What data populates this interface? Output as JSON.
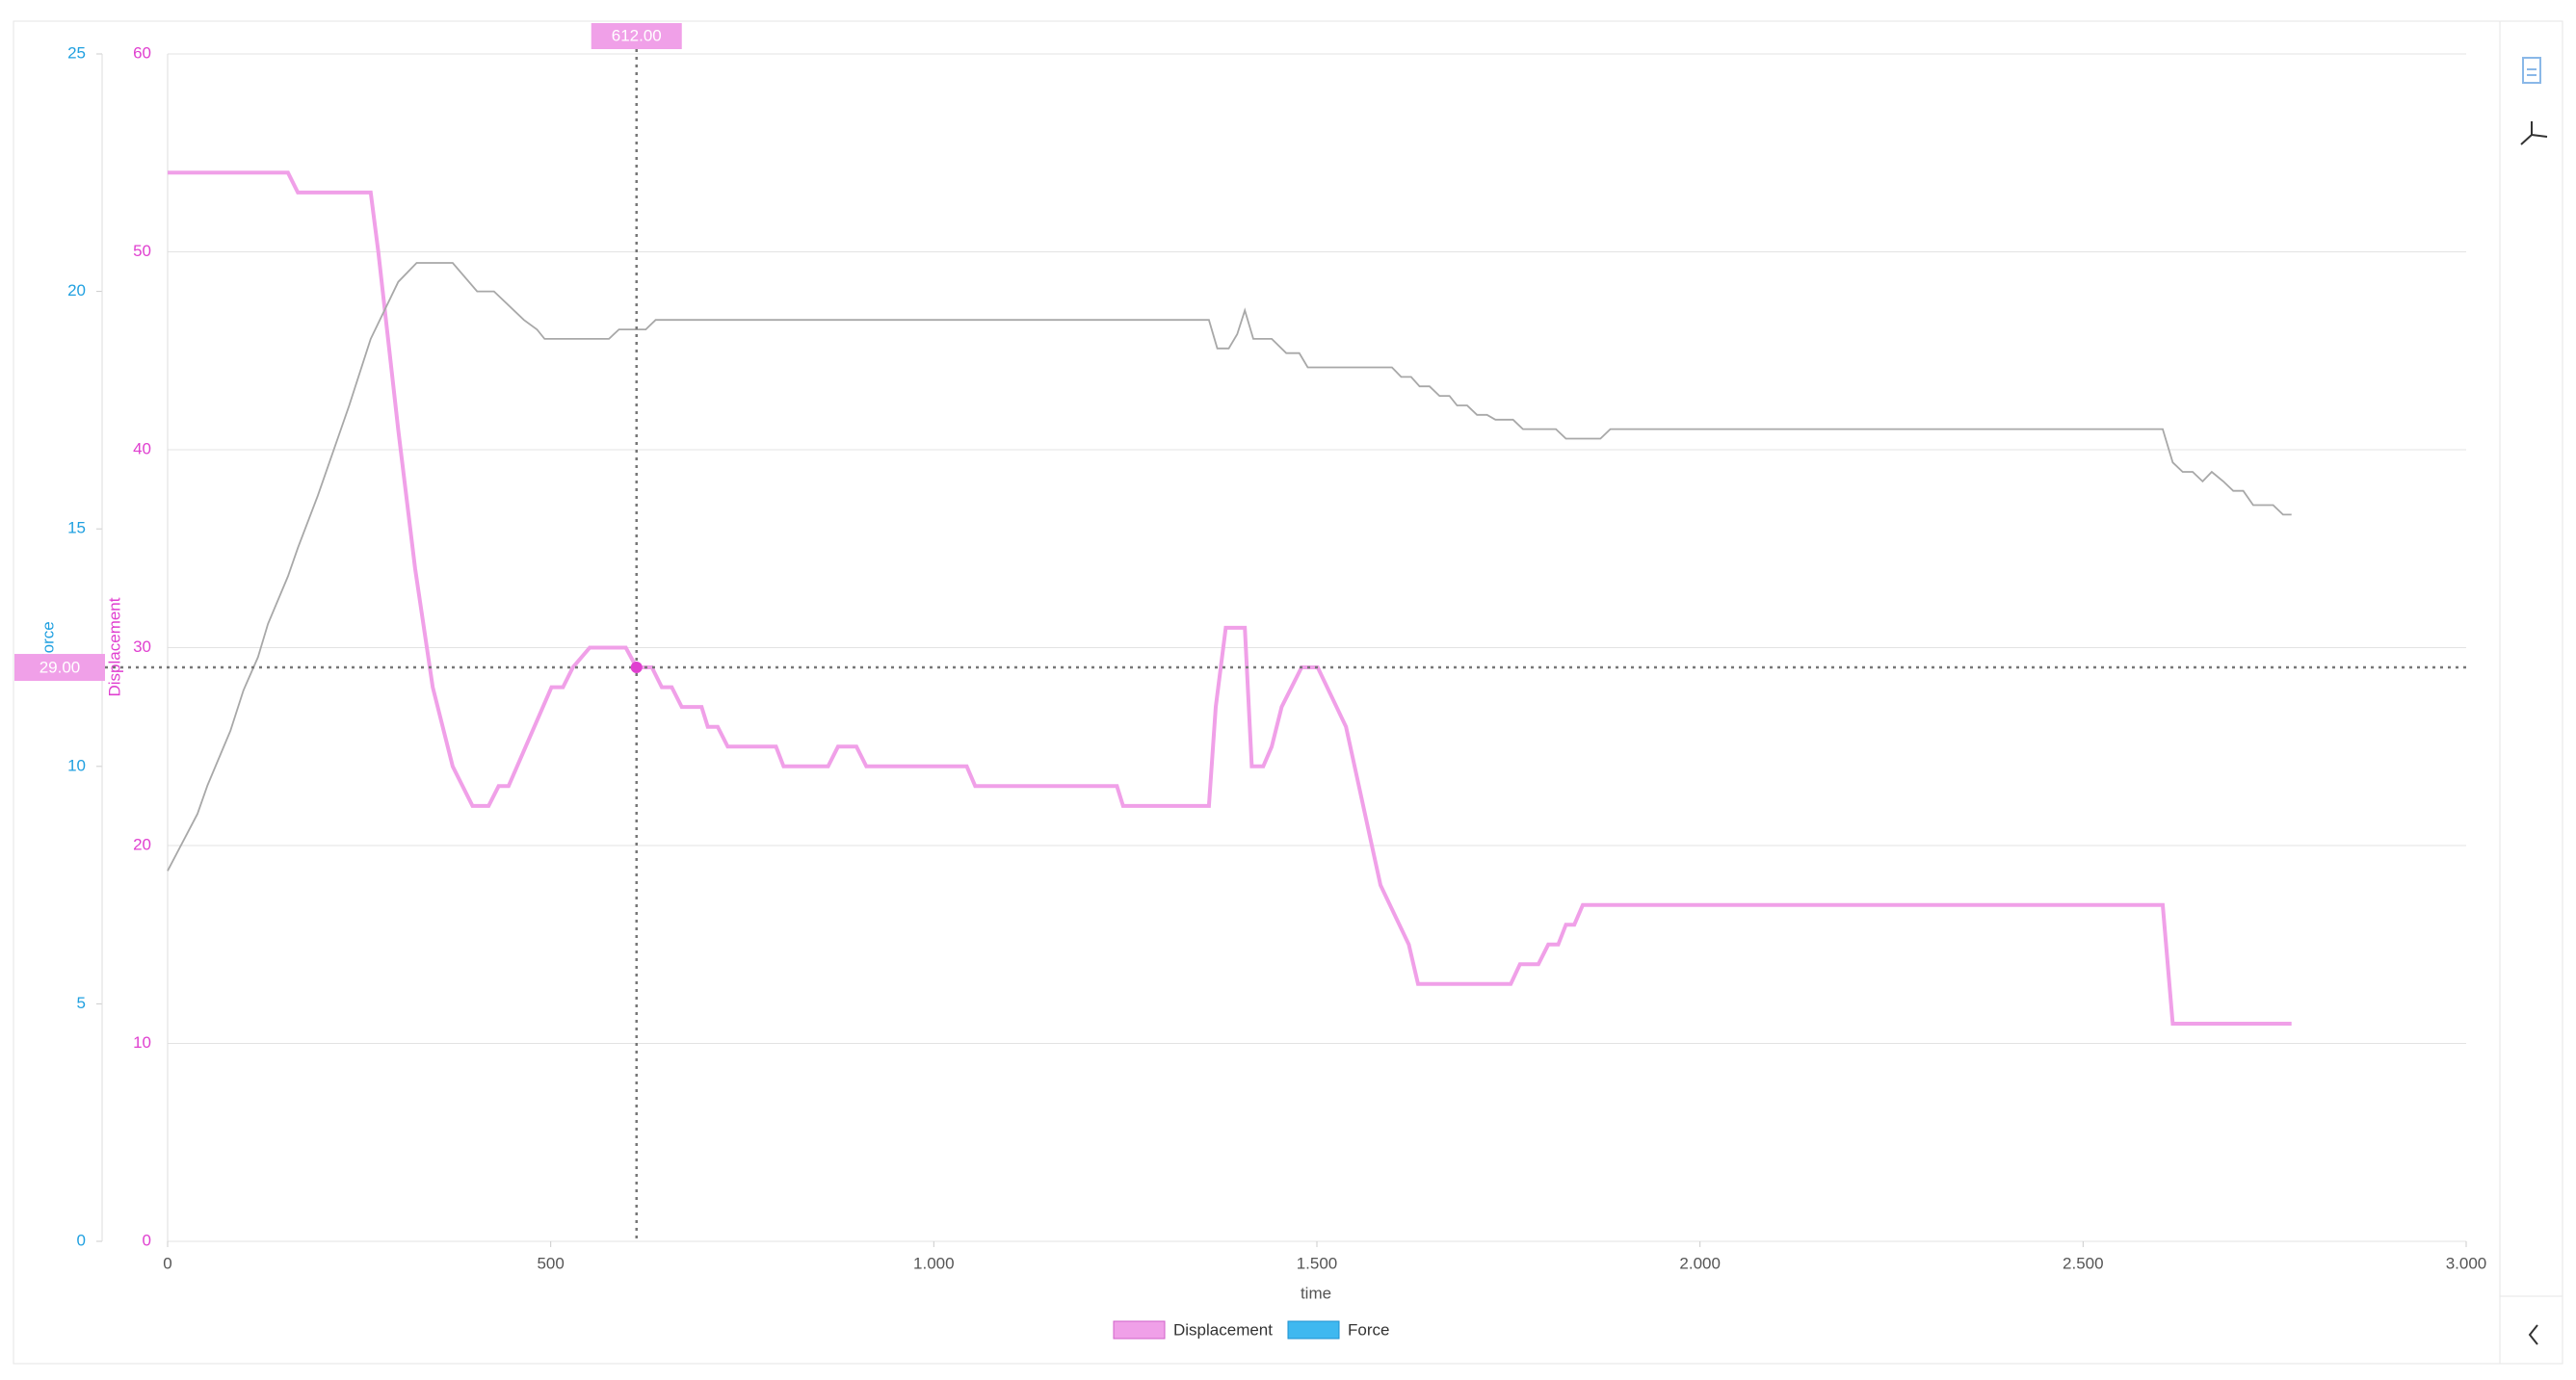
{
  "chart_data": {
    "type": "line",
    "x_label": "time",
    "grid": true,
    "xlim": [
      0,
      3000
    ],
    "xticks": [
      0,
      500,
      {
        "value": 1000,
        "label": "1.000"
      },
      {
        "value": 1500,
        "label": "1.500"
      },
      {
        "value": 2000,
        "label": "2.000"
      },
      {
        "value": 2500,
        "label": "2.500"
      },
      {
        "value": 3000,
        "label": "3.000"
      }
    ],
    "ylim": [
      0,
      60
    ],
    "yticks": [
      0,
      10,
      20,
      30,
      40,
      50,
      60
    ],
    "y_label": "Displacement",
    "y2lim": [
      0,
      25
    ],
    "y2ticks": [
      0,
      5,
      10,
      15,
      20,
      25
    ],
    "y2_label": "Force",
    "series": [
      {
        "name": "Displacement",
        "color": "#f0a0e8",
        "axis": "y",
        "x": [
          0,
          157,
          170,
          265,
          275,
          301,
          323,
          346,
          372,
          398,
          419,
          432,
          445,
          501,
          516,
          529,
          551,
          598,
          612,
          632,
          645,
          658,
          671,
          697,
          705,
          718,
          731,
          794,
          804,
          862,
          875,
          899,
          912,
          1043,
          1054,
          1239,
          1247,
          1359,
          1368,
          1381,
          1406,
          1415,
          1430,
          1441,
          1454,
          1480,
          1501,
          1538,
          1583,
          1620,
          1632,
          1753,
          1765,
          1789,
          1802,
          1815,
          1825,
          1836,
          1847,
          2604,
          2617,
          2772
        ],
        "values": [
          54,
          54,
          53,
          53,
          50,
          41,
          34,
          28,
          24,
          22,
          22,
          23,
          23,
          28,
          28,
          29,
          30,
          30,
          29,
          29,
          28,
          28,
          27,
          27,
          26,
          26,
          25,
          25,
          24,
          24,
          25,
          25,
          24,
          24,
          23,
          23,
          22,
          22,
          27,
          31,
          31,
          24,
          24,
          25,
          27,
          29,
          29,
          26,
          18,
          15,
          13,
          13,
          14,
          14,
          15,
          15,
          16,
          16,
          17,
          17,
          11,
          11
        ]
      },
      {
        "name": "Force",
        "color": "#3fb8f0",
        "line_color": "#a8a8a8",
        "axis": "y2",
        "x": [
          0,
          39,
          52,
          82,
          99,
          118,
          131,
          157,
          170,
          196,
          237,
          265,
          301,
          325,
          372,
          404,
          426,
          465,
          482,
          492,
          576,
          589,
          624,
          637,
          1359,
          1370,
          1385,
          1396,
          1406,
          1417,
          1441,
          1460,
          1477,
          1488,
          1598,
          1610,
          1623,
          1634,
          1647,
          1660,
          1673,
          1683,
          1696,
          1709,
          1722,
          1733,
          1756,
          1769,
          1812,
          1825,
          1870,
          1883,
          2604,
          2617,
          2630,
          2643,
          2656,
          2668,
          2683,
          2696,
          2709,
          2722,
          2748,
          2761,
          2772
        ],
        "values": [
          7.8,
          9.0,
          9.6,
          10.75,
          11.6,
          12.3,
          13.0,
          14.0,
          14.6,
          15.7,
          17.6,
          19.0,
          20.2,
          20.6,
          20.6,
          20.0,
          20.0,
          19.4,
          19.2,
          19.0,
          19.0,
          19.2,
          19.2,
          19.4,
          19.4,
          18.8,
          18.8,
          19.1,
          19.6,
          19.0,
          19.0,
          18.7,
          18.7,
          18.4,
          18.4,
          18.2,
          18.2,
          18.0,
          18.0,
          17.8,
          17.8,
          17.6,
          17.6,
          17.4,
          17.4,
          17.3,
          17.3,
          17.1,
          17.1,
          16.9,
          16.9,
          17.1,
          17.1,
          16.4,
          16.2,
          16.2,
          16.0,
          16.2,
          16.0,
          15.8,
          15.8,
          15.5,
          15.5,
          15.3,
          15.3
        ]
      }
    ],
    "crosshair": {
      "x": 612,
      "y": 29,
      "x_label": "612.00",
      "y_label": "29.00"
    }
  }
}
